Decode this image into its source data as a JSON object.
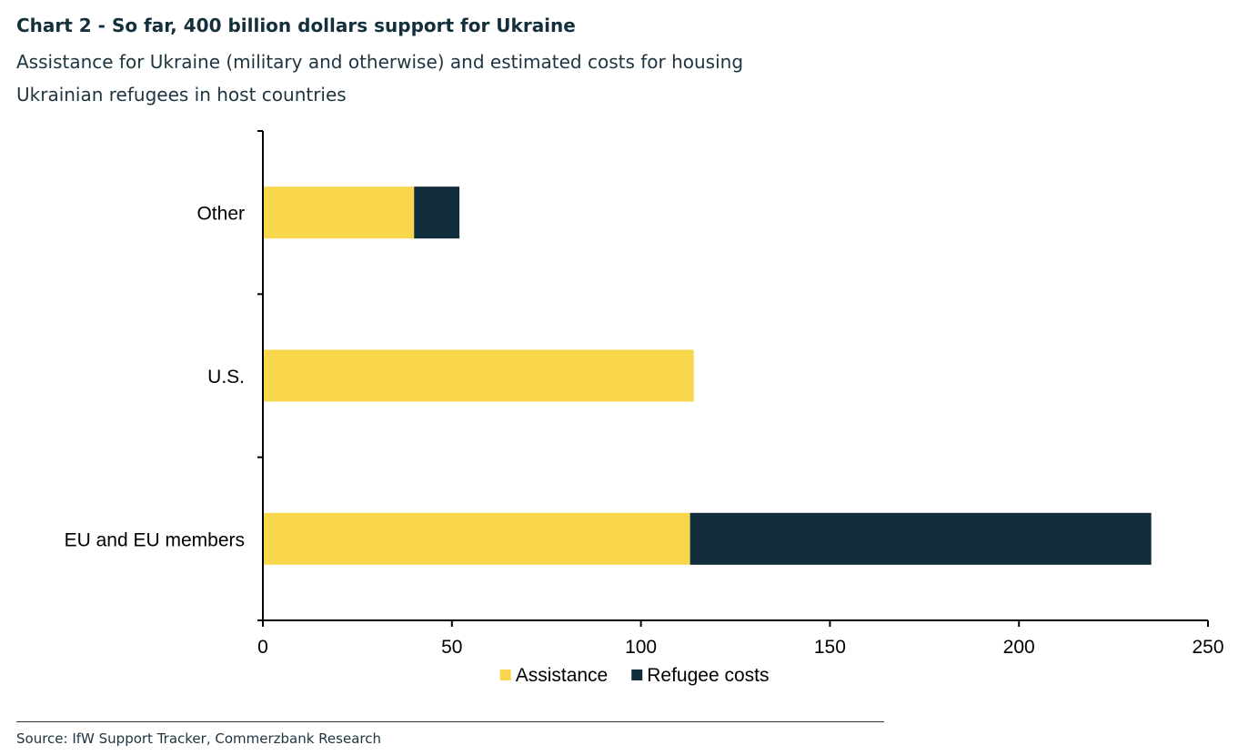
{
  "header": {
    "title": "Chart 2 - So far, 400 billion dollars support for Ukraine",
    "subtitle": "Assistance for Ukraine (military and otherwise) and estimated costs for housing Ukrainian refugees in host countries"
  },
  "footer": {
    "source": "Source: IfW Support Tracker, Commerzbank Research"
  },
  "chart_data": {
    "type": "bar",
    "orientation": "horizontal",
    "stacked": true,
    "categories": [
      "Other",
      "U.S.",
      "EU and EU members"
    ],
    "series": [
      {
        "name": "Assistance",
        "color": "#f8d74c",
        "values": [
          40,
          114,
          113
        ]
      },
      {
        "name": "Refugee costs",
        "color": "#122d3b",
        "values": [
          12,
          0,
          122
        ]
      }
    ],
    "xlim": [
      0,
      250
    ],
    "xticks": [
      0,
      50,
      100,
      150,
      200,
      250
    ],
    "grid": false,
    "legend": "bottom-center"
  }
}
